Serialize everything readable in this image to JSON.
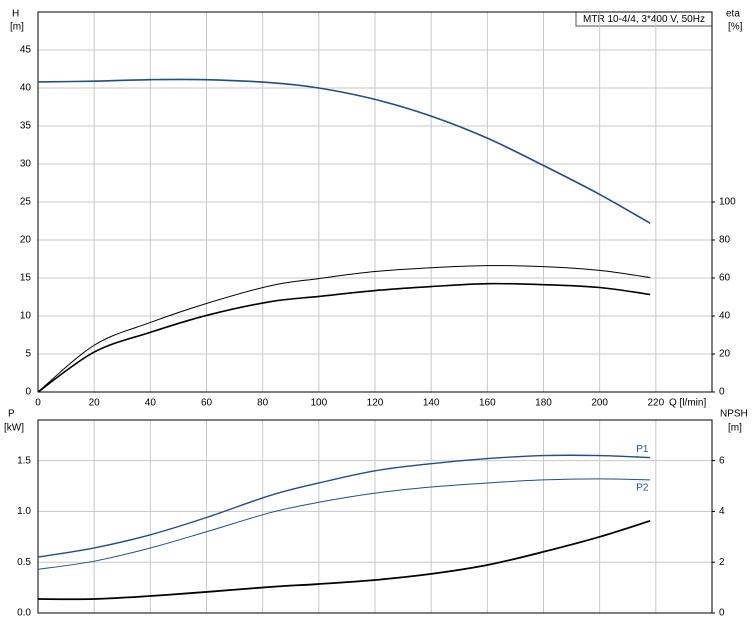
{
  "chart_data": [
    {
      "type": "line",
      "title": "MTR 10-4/4, 3*400 V, 50Hz",
      "xlabel": "Q [l/min]",
      "ylabel": "H",
      "yunit": "[m]",
      "y2label": "eta",
      "y2unit": "[%]",
      "x": [
        0,
        20,
        40,
        60,
        83,
        100,
        120,
        140,
        160,
        180,
        200,
        218
      ],
      "series": [
        {
          "color": "#1f4e8c",
          "values": [
            40.8,
            40.9,
            41.1,
            41.1,
            40.7,
            40,
            38.5,
            36.3,
            33.4,
            29.8,
            26,
            22.2
          ]
        },
        {
          "color": "#000000",
          "axis": "y2",
          "values": [
            0,
            24.6,
            36.6,
            46.6,
            56,
            59.7,
            63.4,
            65.4,
            66.5,
            66,
            64,
            60.2
          ]
        },
        {
          "color": "#000000",
          "axis": "y2",
          "values": [
            0,
            21,
            31.4,
            40.3,
            47.6,
            50.3,
            53.4,
            55.5,
            57,
            56.5,
            55,
            51.3
          ]
        }
      ],
      "xlim": [
        0,
        240
      ],
      "xticks": [
        0,
        20,
        40,
        60,
        80,
        100,
        120,
        140,
        160,
        180,
        200,
        220
      ],
      "ylim": [
        0,
        50
      ],
      "yticks": [
        0,
        5,
        10,
        15,
        20,
        25,
        30,
        35,
        40,
        45
      ],
      "y2lim": [
        0,
        200
      ],
      "y2ticks": [
        0,
        20,
        40,
        60,
        80,
        100
      ],
      "grid": true
    },
    {
      "type": "line",
      "ylabel": "P",
      "yunit": "[kW]",
      "y2label": "NPSH",
      "y2unit": "[m]",
      "x": [
        0,
        20,
        40,
        60,
        83,
        100,
        120,
        140,
        160,
        180,
        200,
        218
      ],
      "series": [
        {
          "name": "P1",
          "color": "#1f4e8c",
          "values": [
            0.55,
            0.64,
            0.77,
            0.94,
            1.16,
            1.28,
            1.4,
            1.47,
            1.52,
            1.55,
            1.55,
            1.53
          ]
        },
        {
          "name": "P2",
          "color": "#1f4e8c",
          "values": [
            0.43,
            0.51,
            0.64,
            0.8,
            0.99,
            1.09,
            1.18,
            1.24,
            1.28,
            1.31,
            1.32,
            1.31
          ]
        },
        {
          "color": "#000000",
          "axis": "y2",
          "values": [
            0.55,
            0.55,
            0.67,
            0.83,
            1.03,
            1.14,
            1.3,
            1.54,
            1.89,
            2.41,
            3.0,
            3.63
          ]
        }
      ],
      "xlim": [
        0,
        240
      ],
      "xticks": [
        0,
        20,
        40,
        60,
        80,
        100,
        120,
        140,
        160,
        180,
        200,
        220
      ],
      "ylim": [
        0,
        1.9
      ],
      "yticks": [
        {
          "value": 0,
          "label": "0.0"
        },
        0.5,
        {
          "value": 1,
          "label": "1.0"
        },
        1.5
      ],
      "y2lim": [
        0,
        7.6
      ],
      "y2ticks": [
        0,
        2,
        4,
        6
      ],
      "grid": true
    }
  ]
}
